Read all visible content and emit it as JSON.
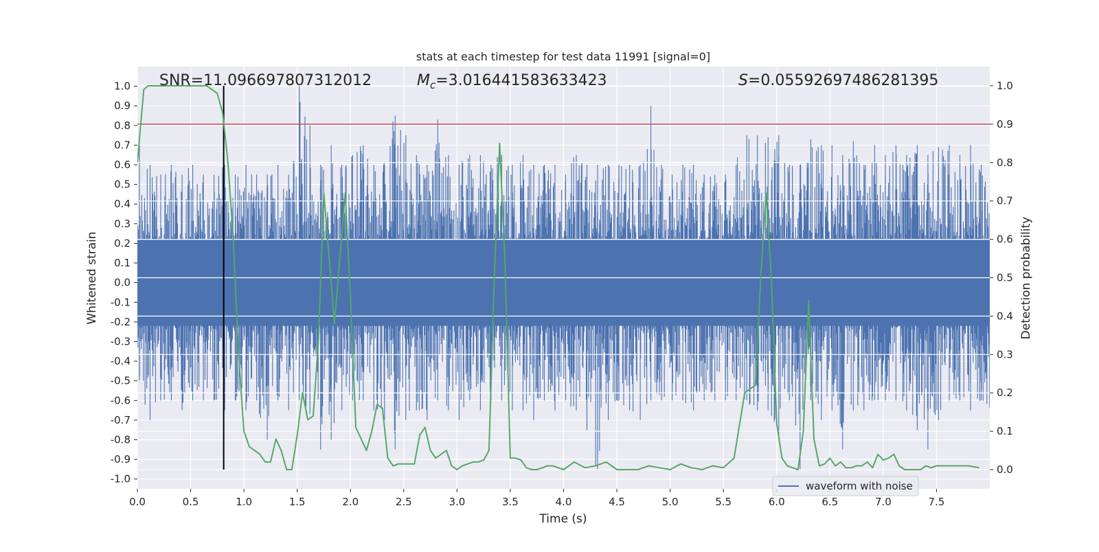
{
  "chart_data": {
    "type": "line",
    "title": "stats at each timestep for test data 11991 [signal=0]",
    "xlabel": "Time (s)",
    "ylabel": "Whitened strain",
    "ylabel_right": "Detection probability",
    "xlim": [
      0.0,
      8.0
    ],
    "ylim": [
      -1.05,
      1.1
    ],
    "ylim_right": [
      -0.05,
      1.05
    ],
    "x_ticks": [
      "0.0",
      "0.5",
      "1.0",
      "1.5",
      "2.0",
      "2.5",
      "3.0",
      "3.5",
      "4.0",
      "4.5",
      "5.0",
      "5.5",
      "6.0",
      "6.5",
      "7.0",
      "7.5"
    ],
    "y_ticks": [
      "-1.0",
      "-0.9",
      "-0.8",
      "-0.7",
      "-0.6",
      "-0.5",
      "-0.4",
      "-0.3",
      "-0.2",
      "-0.1",
      "0.0",
      "0.1",
      "0.2",
      "0.3",
      "0.4",
      "0.5",
      "0.6",
      "0.7",
      "0.8",
      "0.9",
      "1.0"
    ],
    "y_ticks_right": [
      "0.0",
      "0.1",
      "0.2",
      "0.3",
      "0.4",
      "0.5",
      "0.6",
      "0.7",
      "0.8",
      "0.9",
      "1.0"
    ],
    "grid": true,
    "legend": {
      "entries": [
        "waveform with noise"
      ],
      "placement": "lower-right"
    },
    "annotations": {
      "snr": "SNR=11.096697807312012",
      "mc_symbol": "M",
      "mc_sub": "c",
      "mc_value": "=3.016441583633423",
      "s_symbol": "S",
      "s_value": "=0.05592697486281395"
    },
    "threshold": {
      "value": 0.9,
      "axis": "right",
      "color": "#c44e52"
    },
    "marker_time": 0.81,
    "colors": {
      "waveform": "#4c72b0",
      "probability": "#55a868",
      "threshold": "#c44e52",
      "marker": "#000000",
      "background": "#eaeaf2",
      "grid": "#ffffff"
    },
    "series": [
      {
        "name": "waveform with noise",
        "axis": "left",
        "envelope": {
          "x": [
            0.0,
            0.1,
            0.2,
            0.3,
            0.4,
            0.5,
            0.6,
            0.7,
            0.8,
            0.9,
            1.0,
            1.1,
            1.2,
            1.3,
            1.4,
            1.5,
            1.6,
            1.7,
            1.8,
            1.9,
            2.0,
            2.1,
            2.2,
            2.3,
            2.4,
            2.5,
            2.6,
            2.7,
            2.8,
            2.9,
            3.0,
            3.1,
            3.2,
            3.3,
            3.4,
            3.5,
            3.6,
            3.7,
            3.8,
            3.9,
            4.0,
            4.1,
            4.2,
            4.3,
            4.4,
            4.5,
            4.6,
            4.7,
            4.8,
            4.9,
            5.0,
            5.1,
            5.2,
            5.3,
            5.4,
            5.5,
            5.6,
            5.7,
            5.8,
            5.9,
            6.0,
            6.1,
            6.2,
            6.3,
            6.4,
            6.5,
            6.6,
            6.7,
            6.8,
            6.9,
            7.0,
            7.1,
            7.2,
            7.3,
            7.4,
            7.5,
            7.6,
            7.7,
            7.8,
            7.9,
            8.0
          ],
          "max": [
            0.7,
            0.6,
            0.55,
            0.6,
            0.55,
            0.6,
            0.55,
            0.55,
            0.6,
            0.55,
            0.6,
            0.55,
            0.55,
            0.6,
            0.55,
            1.0,
            0.8,
            0.6,
            0.7,
            0.6,
            0.65,
            0.7,
            0.6,
            0.6,
            0.85,
            0.75,
            0.65,
            0.6,
            0.83,
            0.65,
            0.6,
            0.65,
            0.65,
            0.6,
            0.65,
            0.6,
            0.65,
            0.6,
            0.6,
            0.6,
            0.55,
            0.65,
            0.6,
            0.6,
            0.6,
            0.6,
            0.6,
            0.6,
            0.9,
            0.6,
            0.55,
            0.6,
            0.6,
            0.55,
            0.55,
            0.55,
            0.6,
            0.75,
            0.75,
            0.74,
            0.75,
            0.6,
            0.6,
            0.73,
            0.7,
            0.7,
            0.65,
            0.72,
            0.6,
            0.7,
            0.65,
            0.7,
            0.65,
            0.7,
            0.65,
            0.69,
            0.7,
            0.65,
            0.7,
            0.6,
            0.5
          ],
          "min": [
            -0.5,
            -0.7,
            -0.6,
            -0.6,
            -0.65,
            -0.6,
            -0.6,
            -0.6,
            -0.65,
            -0.6,
            -0.65,
            -0.6,
            -0.8,
            -0.6,
            -0.65,
            -0.6,
            -0.65,
            -0.85,
            -0.8,
            -0.65,
            -0.6,
            -0.6,
            -0.65,
            -0.7,
            -0.85,
            -0.7,
            -0.65,
            -0.7,
            -0.6,
            -0.65,
            -0.7,
            -0.6,
            -0.65,
            -0.6,
            -0.6,
            -0.65,
            -0.65,
            -0.7,
            -0.6,
            -0.65,
            -0.6,
            -0.65,
            -0.75,
            -0.95,
            -0.7,
            -0.6,
            -0.65,
            -0.7,
            -0.6,
            -0.6,
            -0.6,
            -0.6,
            -0.65,
            -0.6,
            -0.6,
            -0.6,
            -0.6,
            -0.6,
            -0.65,
            -0.65,
            -0.8,
            -0.6,
            -0.95,
            -0.6,
            -0.7,
            -0.65,
            -0.85,
            -0.65,
            -0.65,
            -0.6,
            -0.6,
            -0.6,
            -0.65,
            -0.75,
            -0.85,
            -0.7,
            -0.6,
            -0.6,
            -0.65,
            -0.6,
            -0.65
          ]
        }
      },
      {
        "name": "",
        "axis": "right",
        "x": [
          0.0,
          0.06,
          0.1,
          0.2,
          0.3,
          0.4,
          0.5,
          0.6,
          0.65,
          0.7,
          0.75,
          0.8,
          0.85,
          0.9,
          0.95,
          1.0,
          1.05,
          1.1,
          1.15,
          1.2,
          1.25,
          1.3,
          1.35,
          1.4,
          1.45,
          1.5,
          1.55,
          1.6,
          1.65,
          1.7,
          1.75,
          1.8,
          1.85,
          1.9,
          1.95,
          2.0,
          2.05,
          2.1,
          2.15,
          2.2,
          2.25,
          2.3,
          2.35,
          2.4,
          2.45,
          2.5,
          2.55,
          2.6,
          2.65,
          2.7,
          2.75,
          2.8,
          2.85,
          2.9,
          2.95,
          3.0,
          3.05,
          3.1,
          3.15,
          3.2,
          3.25,
          3.3,
          3.35,
          3.4,
          3.45,
          3.5,
          3.55,
          3.6,
          3.65,
          3.7,
          3.75,
          3.8,
          3.85,
          3.9,
          3.95,
          4.0,
          4.1,
          4.2,
          4.3,
          4.4,
          4.5,
          4.55,
          4.6,
          4.65,
          4.7,
          4.8,
          4.9,
          5.0,
          5.1,
          5.2,
          5.3,
          5.4,
          5.5,
          5.6,
          5.7,
          5.8,
          5.85,
          5.9,
          5.95,
          6.0,
          6.05,
          6.1,
          6.15,
          6.2,
          6.25,
          6.3,
          6.35,
          6.4,
          6.45,
          6.5,
          6.55,
          6.6,
          6.65,
          6.7,
          6.75,
          6.8,
          6.85,
          6.9,
          6.95,
          7.0,
          7.05,
          7.1,
          7.15,
          7.2,
          7.25,
          7.3,
          7.35,
          7.4,
          7.45,
          7.5,
          7.6,
          7.7,
          7.8,
          7.9
        ],
        "y": [
          0.8,
          0.99,
          1.0,
          1.0,
          1.0,
          1.0,
          1.0,
          1.0,
          1.0,
          0.99,
          0.98,
          0.93,
          0.8,
          0.6,
          0.3,
          0.1,
          0.06,
          0.05,
          0.04,
          0.02,
          0.02,
          0.08,
          0.05,
          0.0,
          0.0,
          0.09,
          0.2,
          0.13,
          0.14,
          0.34,
          0.72,
          0.55,
          0.38,
          0.55,
          0.72,
          0.45,
          0.11,
          0.08,
          0.05,
          0.1,
          0.17,
          0.16,
          0.03,
          0.01,
          0.015,
          0.015,
          0.015,
          0.015,
          0.09,
          0.11,
          0.05,
          0.03,
          0.04,
          0.05,
          0.01,
          0.0,
          0.01,
          0.015,
          0.02,
          0.02,
          0.025,
          0.05,
          0.5,
          0.85,
          0.54,
          0.03,
          0.03,
          0.025,
          0.005,
          0.0,
          0.0,
          0.005,
          0.01,
          0.01,
          0.005,
          0.0,
          0.02,
          0.005,
          0.01,
          0.02,
          0.0,
          0.0,
          0.0,
          0.0,
          0.0,
          0.01,
          0.005,
          0.0,
          0.015,
          0.005,
          0.0,
          0.01,
          0.005,
          0.03,
          0.2,
          0.22,
          0.5,
          0.72,
          0.5,
          0.12,
          0.03,
          0.01,
          0.005,
          0.0,
          0.1,
          0.44,
          0.08,
          0.01,
          0.015,
          0.03,
          0.01,
          0.02,
          0.005,
          0.005,
          0.01,
          0.01,
          0.02,
          0.005,
          0.04,
          0.025,
          0.03,
          0.04,
          0.01,
          0.0,
          0.0,
          0.0,
          0.0,
          0.01,
          0.005,
          0.01,
          0.01,
          0.01,
          0.01,
          0.005
        ]
      }
    ]
  }
}
